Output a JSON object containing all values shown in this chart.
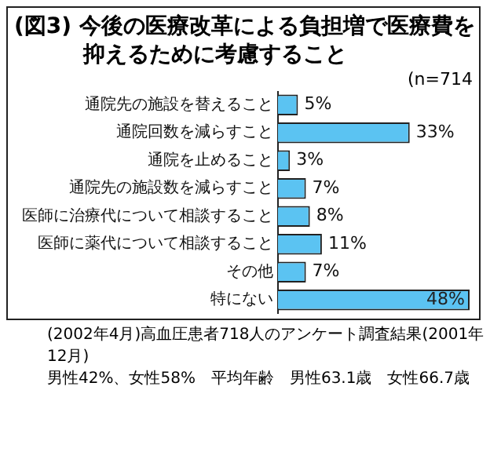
{
  "chart_data": {
    "type": "bar",
    "orientation": "horizontal",
    "title": "(図3) 今後の医療改革による負担増で医療費を抑えるために考慮すること",
    "categories": [
      "通院先の施設を替えること",
      "通院回数を減らすこと",
      "通院を止めること",
      "通院先の施設数を減らすこと",
      "医師に治療代について相談すること",
      "医師に薬代について相談すること",
      "その他",
      "特にない"
    ],
    "values": [
      5,
      33,
      3,
      7,
      8,
      11,
      7,
      48
    ],
    "value_labels": [
      "5%",
      "33%",
      "3%",
      "7%",
      "8%",
      "11%",
      "7%",
      "48%"
    ],
    "color": "#5bc3f2",
    "legend": false,
    "grid": false,
    "annotations": [
      "(n=714",
      "(2002年4月)高血圧患者718人のアンケート調査結果(2001年12月)",
      "男性42%、女性58%　平均年齢　男性63.1歳　女性66.7歳"
    ]
  }
}
